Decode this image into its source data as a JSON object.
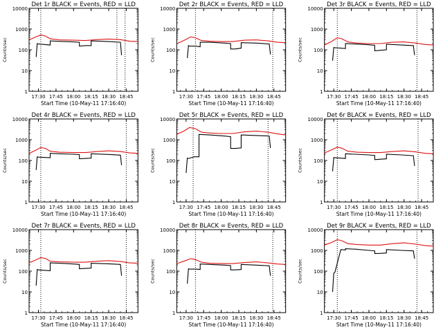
{
  "start_time_label": "Start Time (10-May-11 17:16:40)",
  "y_axis_label": "Counts/sec",
  "colors": {
    "events": "#000000",
    "lld": "#dd1111",
    "axes": "#000000"
  },
  "chart_data": [
    {
      "type": "line",
      "title": "Det 1r BLACK = Events, RED = LLD",
      "xlabel": "Start Time (10-May-11 17:16:40)",
      "ylabel": "Counts/sec",
      "y_scale": "log",
      "ylim": [
        1,
        10000
      ],
      "xlim": [
        "17:22",
        "18:55"
      ],
      "x_ticks": [
        "17:30",
        "17:45",
        "18:00",
        "18:15",
        "18:30",
        "18:45"
      ],
      "y_ticks": [
        "1",
        "10",
        "100",
        "1000",
        "10000"
      ],
      "vlines": [
        "17:32",
        "18:37",
        "18:44"
      ],
      "series": [
        {
          "name": "Events",
          "color": "#000000",
          "x": [
            "17:28",
            "17:29",
            "17:30",
            "17:35",
            "17:40",
            "17:40",
            "17:45",
            "18:00",
            "18:05",
            "18:05",
            "18:10",
            "18:15",
            "18:15",
            "18:30",
            "18:40",
            "18:41"
          ],
          "y": [
            45,
            200,
            190,
            180,
            170,
            270,
            260,
            240,
            230,
            150,
            160,
            160,
            270,
            250,
            230,
            55
          ]
        },
        {
          "name": "LLD",
          "color": "#dd1111",
          "x": [
            "17:22",
            "17:27",
            "17:32",
            "17:36",
            "17:40",
            "17:48",
            "18:00",
            "18:10",
            "18:20",
            "18:30",
            "18:40",
            "18:48",
            "18:55"
          ],
          "y": [
            300,
            400,
            520,
            460,
            340,
            300,
            290,
            280,
            310,
            330,
            310,
            260,
            250
          ]
        }
      ]
    },
    {
      "type": "line",
      "title": "Det 2r BLACK = Events, RED = LLD",
      "xlabel": "Start Time (10-May-11 17:16:40)",
      "ylabel": "Counts/sec",
      "y_scale": "log",
      "ylim": [
        1,
        10000
      ],
      "xlim": [
        "17:22",
        "18:55"
      ],
      "x_ticks": [
        "17:30",
        "17:45",
        "18:00",
        "18:15",
        "18:30",
        "18:45"
      ],
      "y_ticks": [
        "1",
        "10",
        "100",
        "1000",
        "10000"
      ],
      "vlines": [
        "17:38",
        "18:44"
      ],
      "series": [
        {
          "name": "Events",
          "color": "#000000",
          "x": [
            "17:31",
            "17:32",
            "17:33",
            "17:38",
            "17:42",
            "17:42",
            "17:50",
            "18:03",
            "18:08",
            "18:08",
            "18:12",
            "18:17",
            "18:17",
            "18:30",
            "18:41",
            "18:42"
          ],
          "y": [
            40,
            160,
            150,
            150,
            140,
            230,
            230,
            210,
            200,
            110,
            110,
            120,
            220,
            210,
            190,
            60
          ]
        },
        {
          "name": "LLD",
          "color": "#dd1111",
          "x": [
            "17:22",
            "17:28",
            "17:34",
            "17:38",
            "17:43",
            "17:50",
            "18:00",
            "18:10",
            "18:20",
            "18:30",
            "18:40",
            "18:48",
            "18:55"
          ],
          "y": [
            200,
            280,
            420,
            380,
            280,
            260,
            250,
            250,
            290,
            300,
            270,
            230,
            220
          ]
        }
      ]
    },
    {
      "type": "line",
      "title": "Det 3r BLACK = Events, RED = LLD",
      "xlabel": "Start Time (10-May-11 17:16:40)",
      "ylabel": "Counts/sec",
      "y_scale": "log",
      "ylim": [
        1,
        10000
      ],
      "xlim": [
        "17:22",
        "18:55"
      ],
      "x_ticks": [
        "17:30",
        "17:45",
        "18:00",
        "18:15",
        "18:30",
        "18:45"
      ],
      "y_ticks": [
        "1",
        "10",
        "100",
        "1000",
        "10000"
      ],
      "vlines": [
        "17:33",
        "18:41"
      ],
      "series": [
        {
          "name": "Events",
          "color": "#000000",
          "x": [
            "17:29",
            "17:30",
            "17:31",
            "17:36",
            "17:40",
            "17:40",
            "17:48",
            "18:00",
            "18:05",
            "18:05",
            "18:10",
            "18:15",
            "18:15",
            "18:28",
            "18:38",
            "18:39"
          ],
          "y": [
            30,
            130,
            125,
            120,
            115,
            200,
            190,
            175,
            165,
            90,
            95,
            100,
            185,
            170,
            160,
            55
          ]
        },
        {
          "name": "LLD",
          "color": "#dd1111",
          "x": [
            "17:22",
            "17:28",
            "17:33",
            "17:37",
            "17:42",
            "17:50",
            "18:00",
            "18:10",
            "18:20",
            "18:30",
            "18:40",
            "18:48",
            "18:55"
          ],
          "y": [
            170,
            250,
            380,
            340,
            240,
            210,
            200,
            200,
            230,
            240,
            210,
            180,
            170
          ]
        }
      ]
    },
    {
      "type": "line",
      "title": "Det 4r BLACK = Events, RED = LLD",
      "xlabel": "Start Time (10-May-11 17:16:40)",
      "ylabel": "Counts/sec",
      "y_scale": "log",
      "ylim": [
        1,
        10000
      ],
      "xlim": [
        "17:22",
        "18:55"
      ],
      "x_ticks": [
        "17:30",
        "17:45",
        "18:00",
        "18:15",
        "18:30",
        "18:45"
      ],
      "y_ticks": [
        "1",
        "10",
        "100",
        "1000",
        "10000"
      ],
      "vlines": [
        "17:32",
        "18:45"
      ],
      "series": [
        {
          "name": "Events",
          "color": "#000000",
          "x": [
            "17:28",
            "17:29",
            "17:30",
            "17:35",
            "17:40",
            "17:40",
            "17:48",
            "18:00",
            "18:05",
            "18:05",
            "18:10",
            "18:15",
            "18:15",
            "18:30",
            "18:40",
            "18:41"
          ],
          "y": [
            35,
            150,
            145,
            140,
            135,
            220,
            210,
            200,
            190,
            120,
            125,
            130,
            210,
            195,
            180,
            60
          ]
        },
        {
          "name": "LLD",
          "color": "#dd1111",
          "x": [
            "17:22",
            "17:27",
            "17:32",
            "17:36",
            "17:40",
            "17:48",
            "18:00",
            "18:10",
            "18:20",
            "18:30",
            "18:40",
            "18:48",
            "18:55"
          ],
          "y": [
            220,
            300,
            420,
            380,
            280,
            250,
            240,
            240,
            270,
            290,
            270,
            230,
            220
          ]
        }
      ]
    },
    {
      "type": "line",
      "title": "Det 5r BLACK = Events, RED = LLD",
      "xlabel": "Start Time (10-May-11 17:16:40)",
      "ylabel": "Counts/sec",
      "y_scale": "log",
      "ylim": [
        1,
        10000
      ],
      "xlim": [
        "17:22",
        "18:55"
      ],
      "x_ticks": [
        "17:30",
        "17:45",
        "18:00",
        "18:15",
        "18:30",
        "18:45"
      ],
      "y_ticks": [
        "1",
        "10",
        "100",
        "1000",
        "10000"
      ],
      "vlines": [
        "17:36",
        "18:40"
      ],
      "series": [
        {
          "name": "Events",
          "color": "#000000",
          "x": [
            "17:30",
            "17:31",
            "17:32",
            "17:37",
            "17:41",
            "17:41",
            "17:50",
            "18:03",
            "18:08",
            "18:08",
            "18:12",
            "18:17",
            "18:17",
            "18:30",
            "18:41",
            "18:42"
          ],
          "y": [
            25,
            130,
            125,
            150,
            150,
            1800,
            1700,
            1500,
            1400,
            380,
            380,
            400,
            1700,
            1600,
            1500,
            400
          ]
        },
        {
          "name": "LLD",
          "color": "#dd1111",
          "x": [
            "17:22",
            "17:28",
            "17:33",
            "17:38",
            "17:43",
            "17:50",
            "18:00",
            "18:10",
            "18:20",
            "18:30",
            "18:40",
            "18:48",
            "18:55"
          ],
          "y": [
            1800,
            2600,
            3900,
            3400,
            2300,
            2100,
            2000,
            2000,
            2400,
            2600,
            2300,
            1900,
            1700
          ]
        }
      ]
    },
    {
      "type": "line",
      "title": "Det 6r BLACK = Events, RED = LLD",
      "xlabel": "Start Time (10-May-11 17:16:40)",
      "ylabel": "Counts/sec",
      "y_scale": "log",
      "ylim": [
        1,
        10000
      ],
      "xlim": [
        "17:22",
        "18:55"
      ],
      "x_ticks": [
        "17:30",
        "17:45",
        "18:00",
        "18:15",
        "18:30",
        "18:45"
      ],
      "y_ticks": [
        "1",
        "10",
        "100",
        "1000",
        "10000"
      ],
      "vlines": [
        "17:33",
        "18:42"
      ],
      "series": [
        {
          "name": "Events",
          "color": "#000000",
          "x": [
            "17:29",
            "17:30",
            "17:31",
            "17:36",
            "17:40",
            "17:40",
            "17:48",
            "18:00",
            "18:05",
            "18:05",
            "18:10",
            "18:15",
            "18:15",
            "18:28",
            "18:38",
            "18:39"
          ],
          "y": [
            30,
            140,
            135,
            130,
            125,
            210,
            200,
            185,
            175,
            110,
            115,
            120,
            200,
            185,
            170,
            55
          ]
        },
        {
          "name": "LLD",
          "color": "#dd1111",
          "x": [
            "17:22",
            "17:28",
            "17:33",
            "17:37",
            "17:42",
            "17:50",
            "18:00",
            "18:10",
            "18:20",
            "18:30",
            "18:40",
            "18:48",
            "18:55"
          ],
          "y": [
            230,
            320,
            440,
            390,
            280,
            250,
            240,
            240,
            270,
            290,
            260,
            220,
            210
          ]
        }
      ]
    },
    {
      "type": "line",
      "title": "Det 7r BLACK = Events, RED = LLD",
      "xlabel": "Start Time (10-May-11 17:16:40)",
      "ylabel": "Counts/sec",
      "y_scale": "log",
      "ylim": [
        1,
        10000
      ],
      "xlim": [
        "17:22",
        "18:55"
      ],
      "x_ticks": [
        "17:30",
        "17:45",
        "18:00",
        "18:15",
        "18:30",
        "18:45"
      ],
      "y_ticks": [
        "1",
        "10",
        "100",
        "1000",
        "10000"
      ],
      "vlines": [
        "17:32",
        "18:45"
      ],
      "series": [
        {
          "name": "Events",
          "color": "#000000",
          "x": [
            "17:28",
            "17:29",
            "17:30",
            "17:35",
            "17:40",
            "17:40",
            "17:48",
            "18:00",
            "18:05",
            "18:05",
            "18:10",
            "18:15",
            "18:15",
            "18:30",
            "18:40",
            "18:41"
          ],
          "y": [
            20,
            120,
            115,
            110,
            105,
            250,
            240,
            220,
            210,
            130,
            135,
            140,
            240,
            225,
            210,
            60
          ]
        },
        {
          "name": "LLD",
          "color": "#dd1111",
          "x": [
            "17:22",
            "17:27",
            "17:32",
            "17:36",
            "17:40",
            "17:48",
            "18:00",
            "18:10",
            "18:20",
            "18:30",
            "18:40",
            "18:48",
            "18:55"
          ],
          "y": [
            250,
            330,
            450,
            410,
            300,
            280,
            270,
            270,
            300,
            320,
            290,
            250,
            240
          ]
        }
      ]
    },
    {
      "type": "line",
      "title": "Det 8r BLACK = Events, RED = LLD",
      "xlabel": "Start Time (10-May-11 17:16:40)",
      "ylabel": "Counts/sec",
      "y_scale": "log",
      "ylim": [
        1,
        10000
      ],
      "xlim": [
        "17:22",
        "18:55"
      ],
      "x_ticks": [
        "17:30",
        "17:45",
        "18:00",
        "18:15",
        "18:30",
        "18:45"
      ],
      "y_ticks": [
        "1",
        "10",
        "100",
        "1000",
        "10000"
      ],
      "vlines": [
        "17:38",
        "18:44"
      ],
      "series": [
        {
          "name": "Events",
          "color": "#000000",
          "x": [
            "17:31",
            "17:32",
            "17:33",
            "17:38",
            "17:42",
            "17:42",
            "17:50",
            "18:03",
            "18:08",
            "18:08",
            "18:12",
            "18:17",
            "18:17",
            "18:30",
            "18:41",
            "18:42"
          ],
          "y": [
            25,
            130,
            125,
            125,
            120,
            220,
            210,
            195,
            185,
            115,
            115,
            120,
            210,
            195,
            180,
            60
          ]
        },
        {
          "name": "LLD",
          "color": "#dd1111",
          "x": [
            "17:22",
            "17:28",
            "17:34",
            "17:38",
            "17:43",
            "17:50",
            "18:00",
            "18:10",
            "18:20",
            "18:30",
            "18:40",
            "18:48",
            "18:55"
          ],
          "y": [
            230,
            300,
            400,
            360,
            270,
            240,
            230,
            230,
            260,
            280,
            250,
            220,
            210
          ]
        }
      ]
    },
    {
      "type": "line",
      "title": "Det 9r BLACK = Events, RED = LLD",
      "xlabel": "Start Time (10-May-11 17:16:40)",
      "ylabel": "Counts/sec",
      "y_scale": "log",
      "ylim": [
        1,
        10000
      ],
      "xlim": [
        "17:22",
        "18:55"
      ],
      "x_ticks": [
        "17:30",
        "17:45",
        "18:00",
        "18:15",
        "18:30",
        "18:45"
      ],
      "y_ticks": [
        "1",
        "10",
        "100",
        "1000",
        "10000"
      ],
      "vlines": [
        "17:33",
        "18:41"
      ],
      "series": [
        {
          "name": "Events",
          "color": "#000000",
          "x": [
            "17:29",
            "17:30",
            "17:31",
            "17:36",
            "17:40",
            "17:40",
            "17:48",
            "18:00",
            "18:05",
            "18:05",
            "18:10",
            "18:15",
            "18:15",
            "18:28",
            "18:38",
            "18:39"
          ],
          "y": [
            10,
            80,
            90,
            1100,
            1050,
            1200,
            1150,
            1000,
            950,
            700,
            720,
            750,
            1100,
            1000,
            950,
            400
          ]
        },
        {
          "name": "LLD",
          "color": "#dd1111",
          "x": [
            "17:22",
            "17:28",
            "17:33",
            "17:37",
            "17:42",
            "17:50",
            "18:00",
            "18:10",
            "18:20",
            "18:30",
            "18:40",
            "18:48",
            "18:55"
          ],
          "y": [
            1800,
            2400,
            3300,
            2900,
            2100,
            1900,
            1800,
            1800,
            2100,
            2300,
            2000,
            1700,
            1600
          ]
        }
      ]
    }
  ]
}
